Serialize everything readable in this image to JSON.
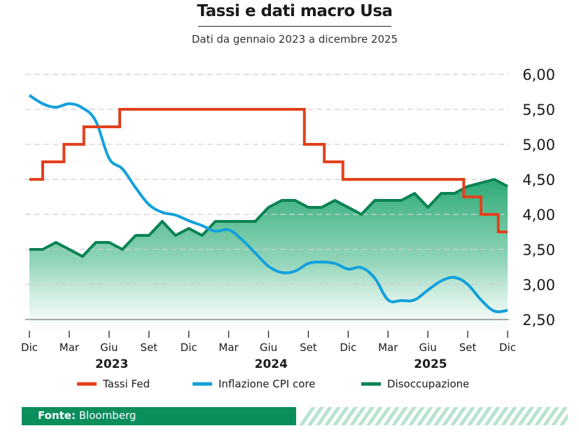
{
  "title": "Tassi e dati macro Usa",
  "subtitle": "Dati da gennaio 2023 a dicembre 2025",
  "source": {
    "label": "Fonte:",
    "value": "Bloomberg"
  },
  "colors": {
    "fed": "#e2401c",
    "cpi": "#12a0dc",
    "unemp": "#0a8252",
    "area": "#1fa46e",
    "footer": "#0a8e5a"
  },
  "chart_data": {
    "type": "line",
    "title": "Tassi e dati macro Usa",
    "ylim": [
      2.3,
      6.0
    ],
    "yticks": [
      "6,00",
      "5,50",
      "5,00",
      "4,50",
      "4,00",
      "3,50",
      "3,00",
      "2,50"
    ],
    "ytick_values": [
      6.0,
      5.5,
      5.0,
      4.5,
      4.0,
      3.5,
      3.0,
      2.5
    ],
    "xlim": [
      0,
      36
    ],
    "xticks": [
      "Dic",
      "Mar",
      "Giu",
      "Set",
      "Dic",
      "Mar",
      "Giu",
      "Set",
      "Dic",
      "Mar",
      "Giu",
      "Set",
      "Dic"
    ],
    "xtick_values": [
      0,
      3,
      6,
      9,
      12,
      15,
      18,
      21,
      24,
      27,
      30,
      33,
      36
    ],
    "years": [
      {
        "label": "2023",
        "x": 6.2
      },
      {
        "label": "2024",
        "x": 18.2
      },
      {
        "label": "2025",
        "x": 30.2
      }
    ],
    "series": [
      {
        "name": "Tassi Fed",
        "style": "step",
        "x": [
          0,
          1,
          1,
          2.6,
          2.6,
          4.1,
          4.1,
          6.8,
          6.8,
          20.7,
          20.7,
          22.2,
          22.2,
          23.6,
          23.6,
          32.7,
          32.7,
          34.0,
          34.0,
          35.3,
          35.3,
          36
        ],
        "values": [
          4.5,
          4.5,
          4.75,
          4.75,
          5.0,
          5.0,
          5.25,
          5.25,
          5.5,
          5.5,
          5.0,
          5.0,
          4.75,
          4.75,
          4.5,
          4.5,
          4.25,
          4.25,
          4.0,
          4.0,
          3.75,
          3.75
        ]
      },
      {
        "name": "Inflazione CPI core",
        "style": "smooth",
        "x": [
          0,
          1,
          2,
          3,
          4,
          5,
          6,
          7,
          8,
          9,
          10,
          11,
          12,
          13,
          14,
          15,
          16,
          17,
          18,
          19,
          20,
          21,
          22,
          23,
          24,
          25,
          26,
          27,
          28,
          29,
          30,
          31,
          32,
          33,
          34,
          35,
          36
        ],
        "values": [
          5.7,
          5.58,
          5.53,
          5.58,
          5.52,
          5.33,
          4.8,
          4.65,
          4.38,
          4.14,
          4.03,
          3.99,
          3.91,
          3.84,
          3.76,
          3.78,
          3.64,
          3.45,
          3.26,
          3.17,
          3.19,
          3.3,
          3.32,
          3.3,
          3.22,
          3.24,
          3.09,
          2.78,
          2.77,
          2.78,
          2.92,
          3.05,
          3.1,
          3.0,
          2.78,
          2.62,
          2.63
        ]
      },
      {
        "name": "Disoccupazione",
        "style": "line",
        "area": true,
        "x": [
          0,
          1,
          2,
          3,
          4,
          5,
          6,
          7,
          8,
          9,
          10,
          11,
          12,
          13,
          14,
          15,
          16,
          17,
          18,
          19,
          20,
          21,
          22,
          23,
          24,
          25,
          26,
          27,
          28,
          29,
          30,
          31,
          32,
          33,
          34,
          35,
          36
        ],
        "values": [
          3.5,
          3.5,
          3.6,
          3.5,
          3.4,
          3.6,
          3.6,
          3.5,
          3.7,
          3.7,
          3.9,
          3.7,
          3.8,
          3.7,
          3.9,
          3.9,
          3.9,
          3.9,
          4.1,
          4.2,
          4.2,
          4.1,
          4.1,
          4.2,
          4.1,
          4.0,
          4.2,
          4.2,
          4.2,
          4.3,
          4.1,
          4.3,
          4.3,
          4.4,
          4.45,
          4.5,
          4.4
        ]
      }
    ]
  }
}
